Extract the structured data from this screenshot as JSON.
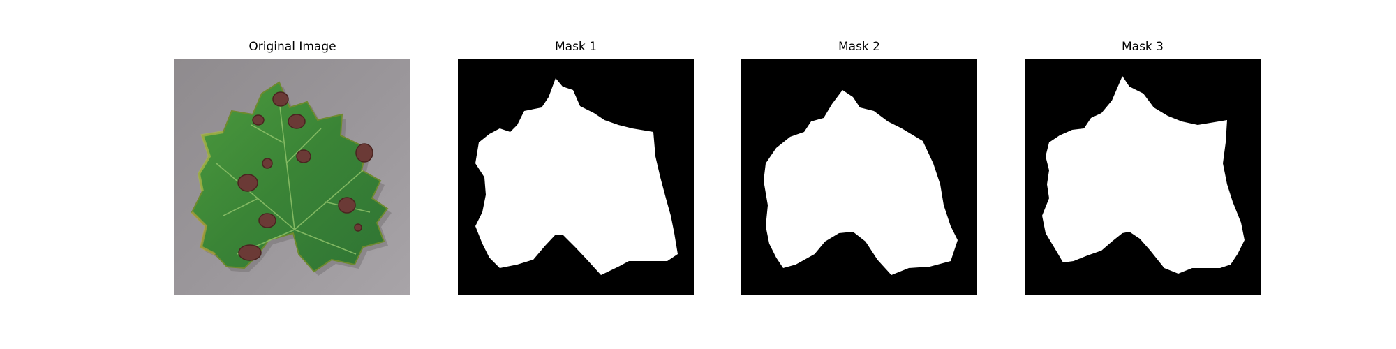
{
  "panels": {
    "original": {
      "title": "Original Image"
    },
    "mask1": {
      "title": "Mask 1"
    },
    "mask2": {
      "title": "Mask 2"
    },
    "mask3": {
      "title": "Mask 3"
    }
  },
  "colors": {
    "background": "#ffffff",
    "mask_background": "#000000",
    "mask_foreground": "#ffffff",
    "leaf_green": "#3f8a3a",
    "lesion_brown": "#6b3a36",
    "surface_gray": "#8e8a8c"
  }
}
